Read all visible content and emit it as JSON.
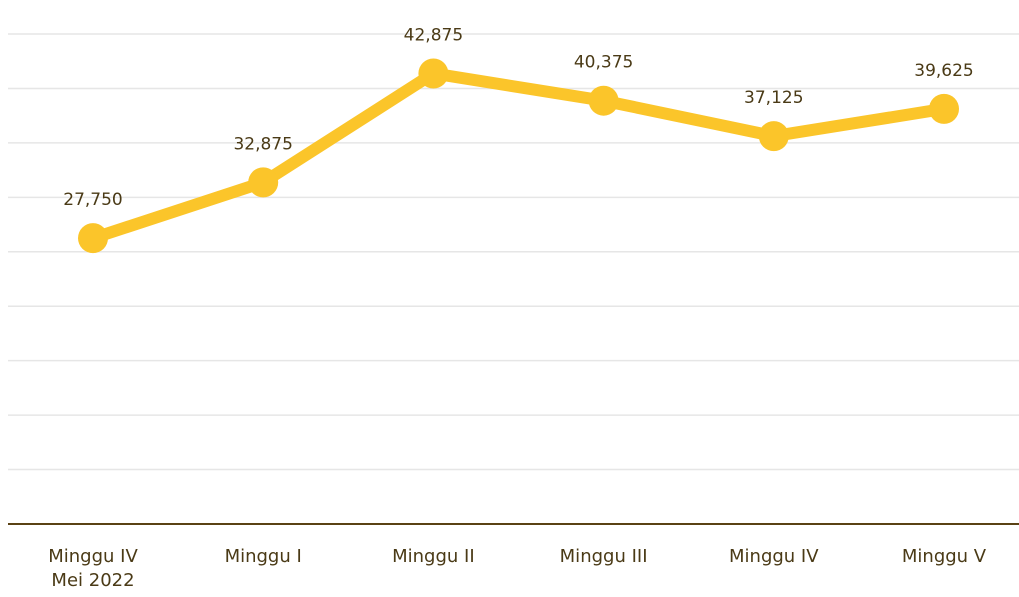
{
  "chart_data": {
    "type": "line",
    "categories": [
      "Minggu IV\nMei 2022",
      "Minggu I",
      "Minggu II",
      "Minggu III",
      "Minggu IV",
      "Minggu V"
    ],
    "series": [
      {
        "color": "#fbc52a",
        "values": [
          27750,
          32875,
          42875,
          40375,
          37125,
          39625
        ],
        "value_labels": [
          "27,750",
          "32,875",
          "42,875",
          "40,375",
          "37,125",
          "39,625"
        ]
      }
    ],
    "ylim": [
      1500,
      46500
    ],
    "yticks": [
      6500,
      11500,
      16500,
      21500,
      26500,
      31500,
      36500,
      41500,
      46500
    ],
    "grid": true
  }
}
